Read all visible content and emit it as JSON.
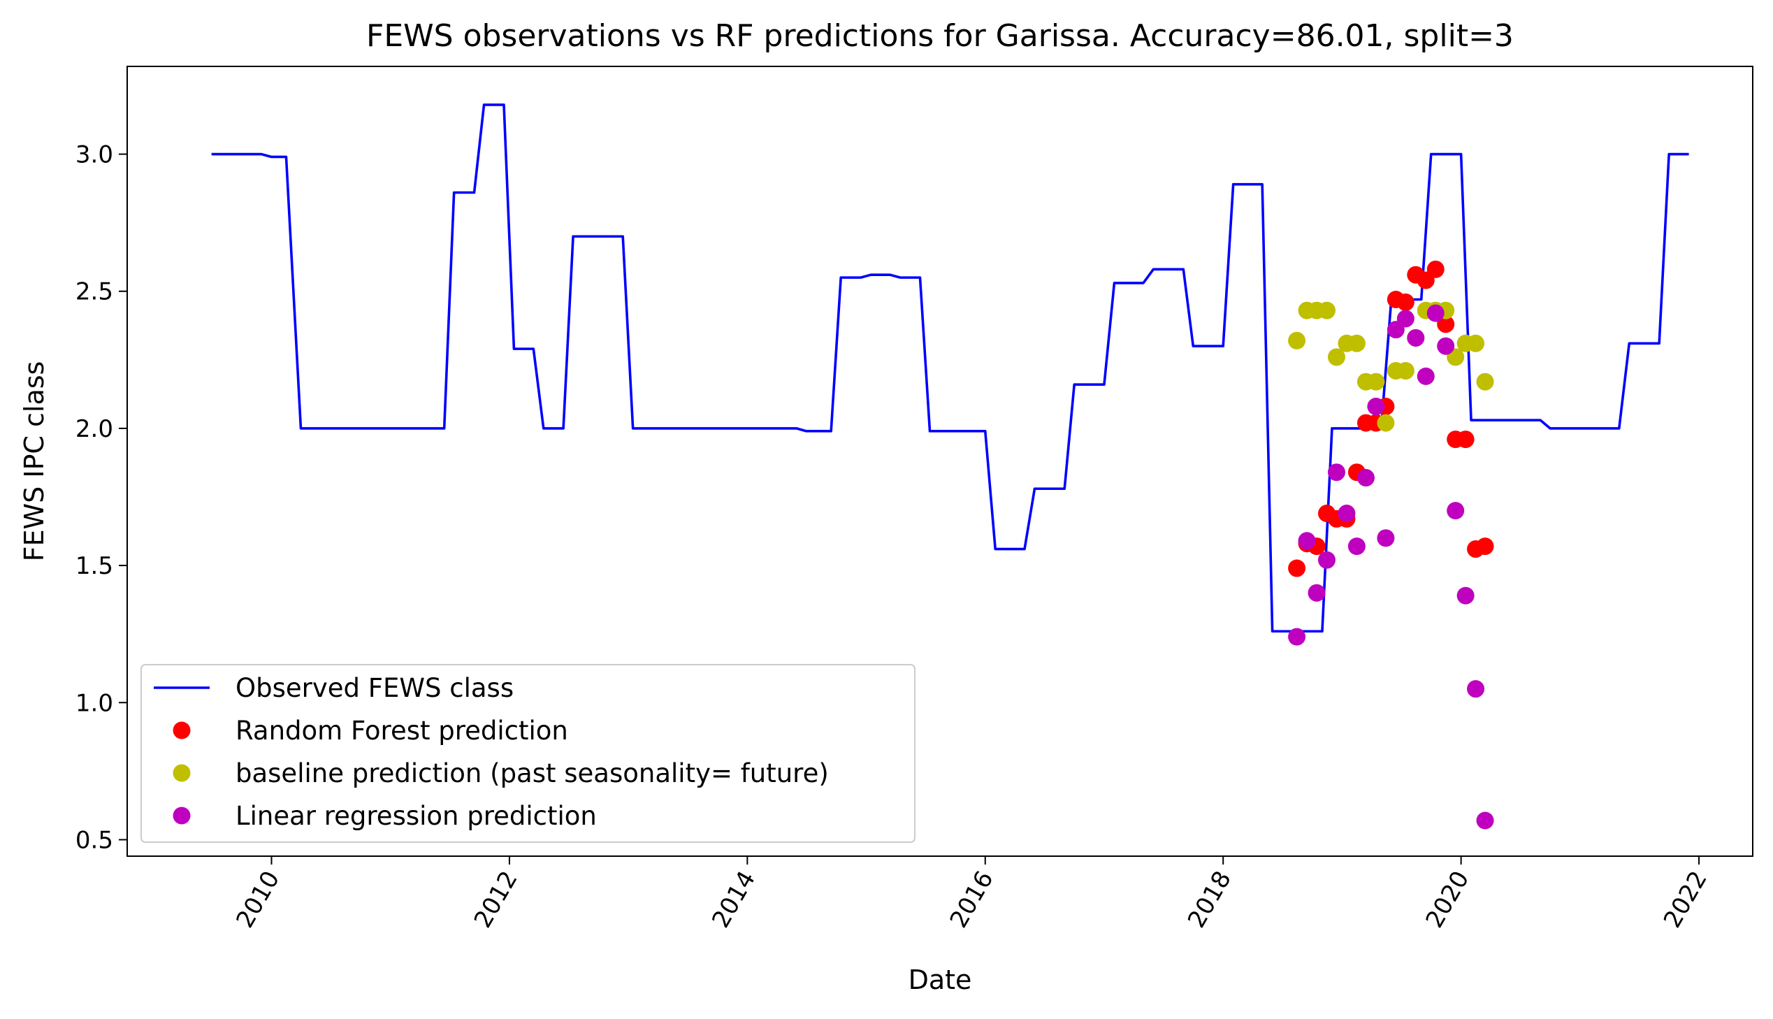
{
  "chart_data": {
    "type": "line",
    "title": "FEWS observations vs RF predictions for Garissa. Accuracy=86.01, split=3",
    "xlabel": "Date",
    "ylabel": "FEWS IPC class",
    "xlim": [
      "2008-10-15",
      "2022-06-15"
    ],
    "ylim": [
      0.44,
      3.32
    ],
    "x_ticks": [
      "2010",
      "2012",
      "2014",
      "2016",
      "2018",
      "2020",
      "2022"
    ],
    "y_ticks": [
      "0.5",
      "1.0",
      "1.5",
      "2.0",
      "2.5",
      "3.0"
    ],
    "legend_position": "lower-left",
    "grid": false,
    "colors": {
      "observed": "#0000ff",
      "random_forest": "#ff0000",
      "baseline": "#bfbf00",
      "linear": "#bf00bf"
    },
    "series": [
      {
        "name": "Observed FEWS class",
        "kind": "line",
        "color": "#0000ff",
        "points": [
          [
            "2009-07-01",
            3.0
          ],
          [
            "2009-10-01",
            3.0
          ],
          [
            "2009-12-01",
            3.0
          ],
          [
            "2010-01-01",
            2.99
          ],
          [
            "2010-02-15",
            2.99
          ],
          [
            "2010-04-01",
            2.0
          ],
          [
            "2010-06-01",
            2.0
          ],
          [
            "2010-07-01",
            2.0
          ],
          [
            "2010-12-01",
            2.0
          ],
          [
            "2011-01-01",
            2.0
          ],
          [
            "2011-06-15",
            2.0
          ],
          [
            "2011-07-15",
            2.86
          ],
          [
            "2011-09-15",
            2.86
          ],
          [
            "2011-10-15",
            3.18
          ],
          [
            "2011-12-15",
            3.18
          ],
          [
            "2012-01-15",
            2.29
          ],
          [
            "2012-03-15",
            2.29
          ],
          [
            "2012-04-15",
            2.0
          ],
          [
            "2012-06-15",
            2.0
          ],
          [
            "2012-07-15",
            2.7
          ],
          [
            "2012-12-15",
            2.7
          ],
          [
            "2013-01-15",
            2.0
          ],
          [
            "2014-06-01",
            2.0
          ],
          [
            "2014-07-01",
            1.99
          ],
          [
            "2014-09-15",
            1.99
          ],
          [
            "2014-10-15",
            2.55
          ],
          [
            "2014-12-15",
            2.55
          ],
          [
            "2015-01-15",
            2.56
          ],
          [
            "2015-03-15",
            2.56
          ],
          [
            "2015-04-15",
            2.55
          ],
          [
            "2015-06-15",
            2.55
          ],
          [
            "2015-07-15",
            1.99
          ],
          [
            "2016-01-01",
            1.99
          ],
          [
            "2016-02-01",
            1.56
          ],
          [
            "2016-05-01",
            1.56
          ],
          [
            "2016-06-01",
            1.78
          ],
          [
            "2016-09-01",
            1.78
          ],
          [
            "2016-10-01",
            2.16
          ],
          [
            "2017-01-01",
            2.16
          ],
          [
            "2017-02-01",
            2.53
          ],
          [
            "2017-05-01",
            2.53
          ],
          [
            "2017-06-01",
            2.58
          ],
          [
            "2017-09-01",
            2.58
          ],
          [
            "2017-10-01",
            2.3
          ],
          [
            "2018-01-01",
            2.3
          ],
          [
            "2018-02-01",
            2.89
          ],
          [
            "2018-05-01",
            2.89
          ],
          [
            "2018-06-01",
            1.26
          ],
          [
            "2018-11-01",
            1.26
          ],
          [
            "2018-12-01",
            2.0
          ],
          [
            "2019-05-01",
            2.0
          ],
          [
            "2019-06-01",
            2.47
          ],
          [
            "2019-09-01",
            2.47
          ],
          [
            "2019-10-01",
            3.0
          ],
          [
            "2020-01-01",
            3.0
          ],
          [
            "2020-02-01",
            2.03
          ],
          [
            "2020-09-01",
            2.03
          ],
          [
            "2020-10-01",
            2.0
          ],
          [
            "2021-01-01",
            2.0
          ],
          [
            "2021-02-01",
            2.0
          ],
          [
            "2021-05-01",
            2.0
          ],
          [
            "2021-06-01",
            2.31
          ],
          [
            "2021-09-01",
            2.31
          ],
          [
            "2021-10-01",
            3.0
          ],
          [
            "2021-12-01",
            3.0
          ]
        ]
      },
      {
        "name": "Random Forest prediction",
        "kind": "scatter",
        "color": "#ff0000",
        "points": [
          [
            "2018-08-15",
            1.49
          ],
          [
            "2018-09-15",
            1.58
          ],
          [
            "2018-10-15",
            1.57
          ],
          [
            "2018-11-15",
            1.69
          ],
          [
            "2018-12-15",
            1.67
          ],
          [
            "2019-01-15",
            1.67
          ],
          [
            "2019-02-15",
            1.84
          ],
          [
            "2019-03-15",
            2.02
          ],
          [
            "2019-04-15",
            2.02
          ],
          [
            "2019-05-15",
            2.08
          ],
          [
            "2019-06-15",
            2.47
          ],
          [
            "2019-07-15",
            2.46
          ],
          [
            "2019-08-15",
            2.56
          ],
          [
            "2019-09-15",
            2.54
          ],
          [
            "2019-10-15",
            2.58
          ],
          [
            "2019-11-15",
            2.38
          ],
          [
            "2019-12-15",
            1.96
          ],
          [
            "2020-01-15",
            1.96
          ],
          [
            "2020-02-15",
            1.56
          ],
          [
            "2020-03-15",
            1.57
          ]
        ]
      },
      {
        "name": "baseline prediction (past seasonality= future)",
        "kind": "scatter",
        "color": "#bfbf00",
        "points": [
          [
            "2018-08-15",
            2.32
          ],
          [
            "2018-09-15",
            2.43
          ],
          [
            "2018-10-15",
            2.43
          ],
          [
            "2018-11-15",
            2.43
          ],
          [
            "2018-12-15",
            2.26
          ],
          [
            "2019-01-15",
            2.31
          ],
          [
            "2019-02-15",
            2.31
          ],
          [
            "2019-03-15",
            2.17
          ],
          [
            "2019-04-15",
            2.17
          ],
          [
            "2019-05-15",
            2.02
          ],
          [
            "2019-06-15",
            2.21
          ],
          [
            "2019-07-15",
            2.21
          ],
          [
            "2019-08-15",
            2.33
          ],
          [
            "2019-09-15",
            2.43
          ],
          [
            "2019-10-15",
            2.43
          ],
          [
            "2019-11-15",
            2.43
          ],
          [
            "2019-12-15",
            2.26
          ],
          [
            "2020-01-15",
            2.31
          ],
          [
            "2020-02-15",
            2.31
          ],
          [
            "2020-03-15",
            2.17
          ]
        ]
      },
      {
        "name": "Linear regression prediction",
        "kind": "scatter",
        "color": "#bf00bf",
        "points": [
          [
            "2018-08-15",
            1.24
          ],
          [
            "2018-09-15",
            1.59
          ],
          [
            "2018-10-15",
            1.4
          ],
          [
            "2018-11-15",
            1.52
          ],
          [
            "2018-12-15",
            1.84
          ],
          [
            "2019-01-15",
            1.69
          ],
          [
            "2019-02-15",
            1.57
          ],
          [
            "2019-03-15",
            1.82
          ],
          [
            "2019-04-15",
            2.08
          ],
          [
            "2019-05-15",
            1.6
          ],
          [
            "2019-06-15",
            2.36
          ],
          [
            "2019-07-15",
            2.4
          ],
          [
            "2019-08-15",
            2.33
          ],
          [
            "2019-09-15",
            2.19
          ],
          [
            "2019-10-15",
            2.42
          ],
          [
            "2019-11-15",
            2.3
          ],
          [
            "2019-12-15",
            1.7
          ],
          [
            "2020-01-15",
            1.39
          ],
          [
            "2020-02-15",
            1.05
          ],
          [
            "2020-03-15",
            0.57
          ]
        ]
      }
    ]
  }
}
